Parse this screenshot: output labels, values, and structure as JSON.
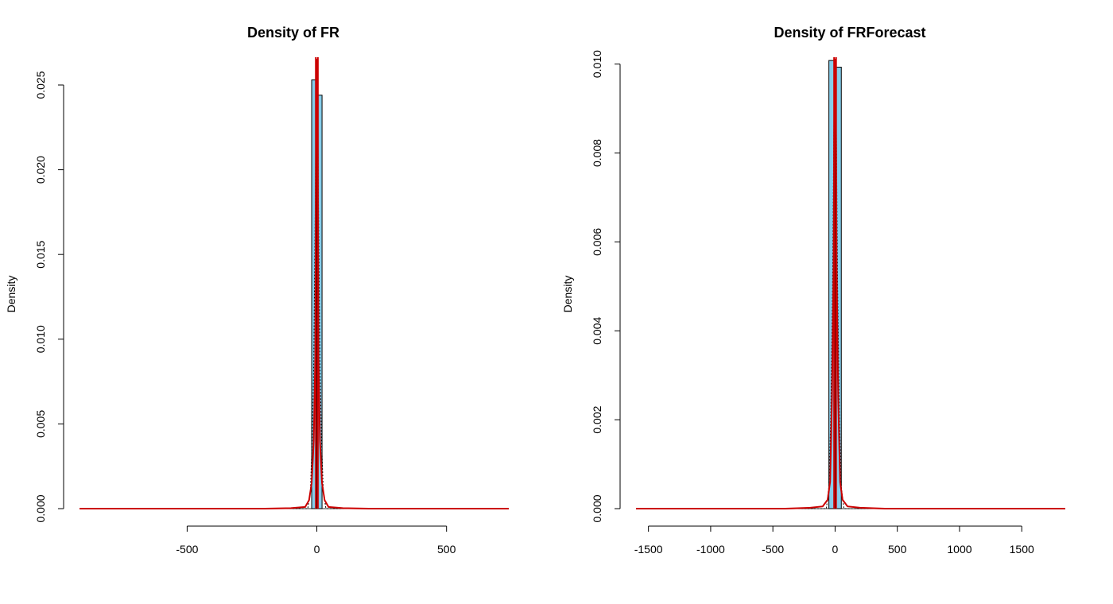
{
  "colors": {
    "bar_fill": "#87ceeb",
    "bar_stroke": "#000000",
    "density_line": "#cc0000",
    "normal_line": "#000000",
    "axis": "#000000"
  },
  "chart_data": [
    {
      "type": "bar",
      "title": "Density of FR",
      "xlabel": "",
      "ylabel": "Density",
      "xlim": [
        -915,
        740
      ],
      "ylim": [
        0,
        0.0265
      ],
      "x_ticks": [
        -500,
        0,
        500
      ],
      "x_tick_labels": [
        "-500",
        "0",
        "500"
      ],
      "y_ticks": [
        0.0,
        0.005,
        0.01,
        0.015,
        0.02,
        0.025
      ],
      "y_tick_labels": [
        "0.000",
        "0.005",
        "0.010",
        "0.015",
        "0.020",
        "0.025"
      ],
      "histogram": {
        "bins": [
          {
            "x0": -20,
            "x1": 0,
            "density": 0.0253
          },
          {
            "x0": 0,
            "x1": 20,
            "density": 0.0244
          }
        ]
      },
      "density_curve": [
        [
          -915,
          0
        ],
        [
          -200,
          0.0
        ],
        [
          -100,
          3e-05
        ],
        [
          -45,
          0.0001
        ],
        [
          -30,
          0.0005
        ],
        [
          -20,
          0.0015
        ],
        [
          -12,
          0.004
        ],
        [
          -6,
          0.009
        ],
        [
          -2,
          0.0265
        ],
        [
          2,
          0.0265
        ],
        [
          6,
          0.009
        ],
        [
          12,
          0.004
        ],
        [
          20,
          0.0015
        ],
        [
          30,
          0.0005
        ],
        [
          45,
          0.0001
        ],
        [
          100,
          3e-05
        ],
        [
          200,
          0.0
        ],
        [
          740,
          0
        ]
      ],
      "normal_curve": [
        [
          -915,
          0
        ],
        [
          -35,
          0.0
        ],
        [
          -25,
          0.001
        ],
        [
          -18,
          0.004
        ],
        [
          -12,
          0.0085
        ],
        [
          -6,
          0.018
        ],
        [
          -2,
          0.0265
        ],
        [
          2,
          0.0265
        ],
        [
          6,
          0.018
        ],
        [
          12,
          0.0085
        ],
        [
          18,
          0.004
        ],
        [
          25,
          0.001
        ],
        [
          35,
          0.0
        ],
        [
          740,
          0
        ]
      ],
      "vlines": [
        -4,
        4
      ],
      "legend": "none",
      "grid": false
    },
    {
      "type": "bar",
      "title": "Density of FRForecast",
      "xlabel": "",
      "ylabel": "Density",
      "xlim": [
        -1600,
        1850
      ],
      "ylim": [
        0,
        0.0101
      ],
      "x_ticks": [
        -1500,
        -1000,
        -500,
        0,
        500,
        1000,
        1500
      ],
      "x_tick_labels": [
        "-1500",
        "-1000",
        "-500",
        "0",
        "500",
        "1000",
        "1500"
      ],
      "y_ticks": [
        0.0,
        0.002,
        0.004,
        0.006,
        0.008,
        0.01
      ],
      "y_tick_labels": [
        "0.000",
        "0.002",
        "0.004",
        "0.006",
        "0.008",
        "0.010"
      ],
      "histogram": {
        "bins": [
          {
            "x0": -50,
            "x1": 0,
            "density": 0.01008
          },
          {
            "x0": 0,
            "x1": 50,
            "density": 0.00993
          }
        ]
      },
      "density_curve": [
        [
          -1600,
          0
        ],
        [
          -400,
          0.0
        ],
        [
          -200,
          2e-05
        ],
        [
          -100,
          5e-05
        ],
        [
          -60,
          0.0002
        ],
        [
          -40,
          0.0006
        ],
        [
          -25,
          0.0025
        ],
        [
          -12,
          0.0055
        ],
        [
          -4,
          0.0101
        ],
        [
          4,
          0.0101
        ],
        [
          12,
          0.0055
        ],
        [
          25,
          0.0025
        ],
        [
          40,
          0.0006
        ],
        [
          60,
          0.0002
        ],
        [
          100,
          5e-05
        ],
        [
          200,
          2e-05
        ],
        [
          400,
          0.0
        ],
        [
          1850,
          0
        ]
      ],
      "normal_curve": [
        [
          -1600,
          0
        ],
        [
          -70,
          0.0
        ],
        [
          -50,
          0.0005
        ],
        [
          -35,
          0.002
        ],
        [
          -20,
          0.005
        ],
        [
          -10,
          0.0085
        ],
        [
          -3,
          0.0101
        ],
        [
          3,
          0.0101
        ],
        [
          10,
          0.0085
        ],
        [
          20,
          0.005
        ],
        [
          35,
          0.002
        ],
        [
          50,
          0.0005
        ],
        [
          70,
          0.0
        ],
        [
          1850,
          0
        ]
      ],
      "vlines": [
        -8,
        8
      ],
      "legend": "none",
      "grid": false
    }
  ]
}
